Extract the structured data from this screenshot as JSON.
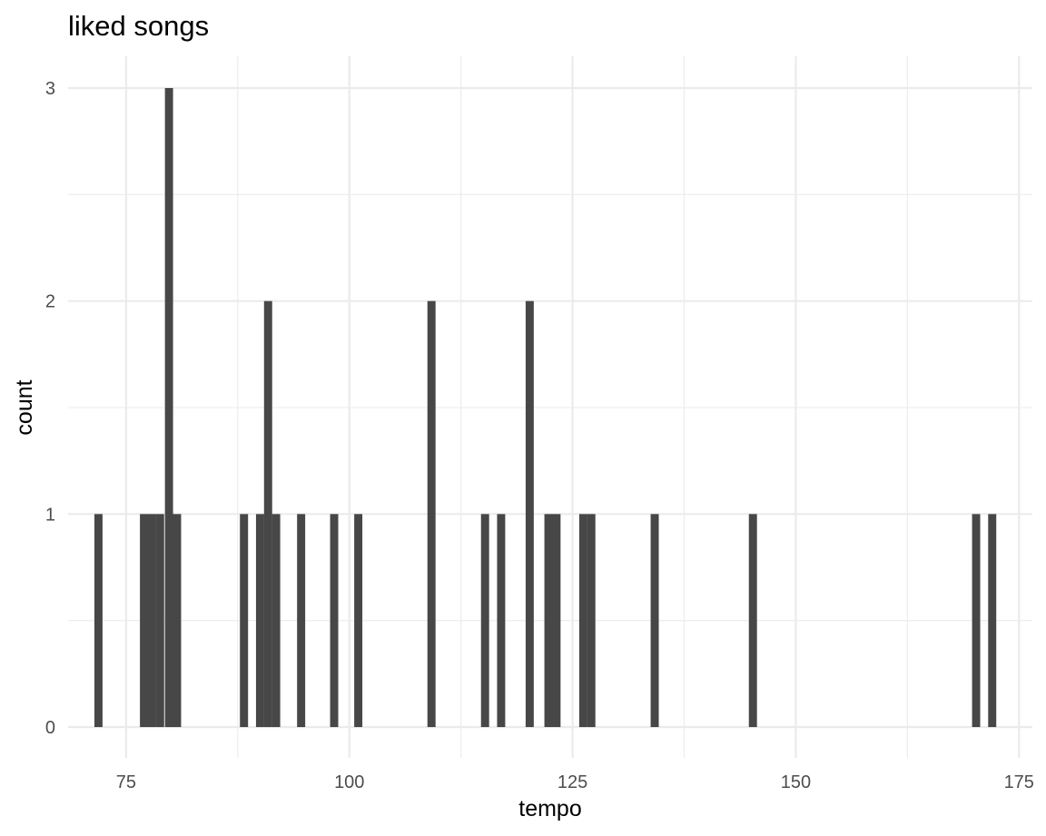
{
  "chart_data": {
    "type": "bar",
    "title": "liked songs",
    "xlabel": "tempo",
    "ylabel": "count",
    "xlim": [
      68.5,
      176.5
    ],
    "ylim": [
      0,
      3
    ],
    "x_ticks": [
      75,
      100,
      125,
      150,
      175
    ],
    "x_tick_labels": [
      "75",
      "100",
      "125",
      "150",
      "175"
    ],
    "x_minor_ticks": [
      87.5,
      112.5,
      137.5,
      162.5
    ],
    "y_ticks": [
      0,
      1,
      2,
      3
    ],
    "y_tick_labels": [
      "0",
      "1",
      "2",
      "3"
    ],
    "y_minor_ticks": [
      0.5,
      1.5,
      2.5
    ],
    "grid": true,
    "bar_color": "#474747",
    "bin_width": 0.91,
    "bins": [
      {
        "x": 71.9,
        "count": 1
      },
      {
        "x": 77.0,
        "count": 1
      },
      {
        "x": 77.9,
        "count": 1
      },
      {
        "x": 78.8,
        "count": 1
      },
      {
        "x": 79.8,
        "count": 3
      },
      {
        "x": 80.7,
        "count": 1
      },
      {
        "x": 88.2,
        "count": 1
      },
      {
        "x": 90.0,
        "count": 1
      },
      {
        "x": 90.9,
        "count": 2
      },
      {
        "x": 91.8,
        "count": 1
      },
      {
        "x": 94.6,
        "count": 1
      },
      {
        "x": 98.3,
        "count": 1
      },
      {
        "x": 101.0,
        "count": 1
      },
      {
        "x": 109.2,
        "count": 2
      },
      {
        "x": 115.2,
        "count": 1
      },
      {
        "x": 117.0,
        "count": 1
      },
      {
        "x": 120.2,
        "count": 2
      },
      {
        "x": 122.3,
        "count": 1
      },
      {
        "x": 123.2,
        "count": 1
      },
      {
        "x": 126.2,
        "count": 1
      },
      {
        "x": 127.1,
        "count": 1
      },
      {
        "x": 134.2,
        "count": 1
      },
      {
        "x": 145.2,
        "count": 1
      },
      {
        "x": 170.2,
        "count": 1
      },
      {
        "x": 172.0,
        "count": 1
      }
    ]
  }
}
